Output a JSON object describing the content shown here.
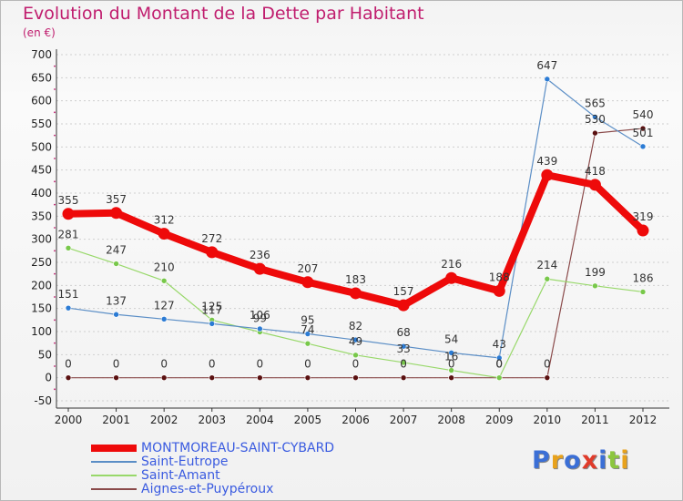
{
  "title": "Evolution du Montant de la Dette par Habitant",
  "unit": "(en €)",
  "logo": {
    "text": "Proxiti",
    "colors": [
      "#3b6fd6",
      "#e8a21c",
      "#3b6fd6",
      "#e03b2a",
      "#3b6fd6",
      "#8cc63e",
      "#e8a21c"
    ]
  },
  "chart_data": {
    "type": "line",
    "title": "Evolution du Montant de la Dette par Habitant",
    "ylabel": "(en €)",
    "xlabel": "",
    "x": [
      "2000",
      "2001",
      "2002",
      "2003",
      "2004",
      "2005",
      "2006",
      "2007",
      "2008",
      "2009",
      "2010",
      "2011",
      "2012"
    ],
    "ylim": [
      -50,
      700
    ],
    "yticks": [
      -50,
      0,
      50,
      100,
      150,
      200,
      250,
      300,
      350,
      400,
      450,
      500,
      550,
      600,
      650,
      700
    ],
    "grid": "horizontal dashed",
    "legend_position": "bottom-left",
    "series": [
      {
        "name": "MONTMOREAU-SAINT-CYBARD",
        "color": "#ee0a0a",
        "width": 8,
        "marker_fill": "#ee0a0a",
        "values": [
          355,
          357,
          312,
          272,
          236,
          207,
          183,
          157,
          216,
          188,
          439,
          418,
          319
        ],
        "labels": [
          "355",
          "357",
          "312",
          "272",
          "236",
          "207",
          "183",
          "157",
          "216",
          "188",
          "439",
          "418",
          "319"
        ]
      },
      {
        "name": "Saint-Eutrope",
        "color": "#5b8ec6",
        "width": 1.2,
        "marker_fill": "#2b7bd4",
        "values": [
          151,
          137,
          127,
          117,
          106,
          95,
          82,
          68,
          54,
          43,
          647,
          565,
          501
        ],
        "labels": [
          "151",
          "137",
          "127",
          "117",
          "106",
          "95",
          "82",
          "68",
          "54",
          "43",
          "647",
          "565",
          "501"
        ]
      },
      {
        "name": "Saint-Amant",
        "color": "#98d86a",
        "width": 1.2,
        "marker_fill": "#78c84a",
        "values": [
          281,
          247,
          210,
          125,
          99,
          74,
          49,
          33,
          16,
          0,
          214,
          199,
          186
        ],
        "labels": [
          "281",
          "247",
          "210",
          "125",
          "99",
          "74",
          "49",
          "33",
          "16",
          "0",
          "214",
          "199",
          "186"
        ]
      },
      {
        "name": "Aignes-et-Puypéroux",
        "color": "#8a4a4a",
        "width": 1.2,
        "marker_fill": "#5a1010",
        "values": [
          0,
          0,
          0,
          0,
          0,
          0,
          0,
          0,
          0,
          0,
          0,
          530,
          540
        ],
        "labels": [
          "0",
          "0",
          "0",
          "0",
          "0",
          "0",
          "0",
          "0",
          "0",
          "0",
          "0",
          "530",
          "540"
        ]
      }
    ]
  }
}
